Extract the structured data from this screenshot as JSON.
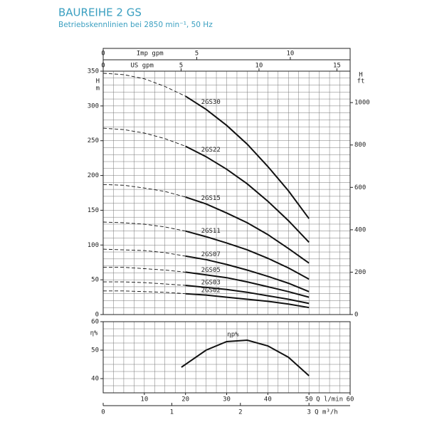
{
  "chart_data": [
    {
      "type": "line",
      "title": "BAUREIHE 2 GS",
      "subtitle": "Betriebskennlinien bei 2850 min⁻¹, 50 Hz",
      "xlim": [
        0,
        60
      ],
      "ylim": [
        0,
        350
      ],
      "yticks": [
        0,
        50,
        100,
        150,
        200,
        250,
        300,
        350
      ],
      "ylabel": "H",
      "yunit": "m",
      "y2lim": [
        0,
        1148.3
      ],
      "y2ticks": [
        0,
        200,
        400,
        600,
        800,
        1000
      ],
      "y2label": "H",
      "y2unit": "ft",
      "top_axes": [
        {
          "label": "Imp gpm",
          "xlim": [
            0,
            13.198
          ],
          "xticks": [
            0,
            5,
            10
          ]
        },
        {
          "label": "US gpm",
          "xlim": [
            0,
            15.85
          ],
          "xticks": [
            0,
            5,
            10,
            15
          ]
        }
      ],
      "grid": true,
      "solid_from_x": 20,
      "x": [
        0,
        5,
        10,
        15,
        20,
        25,
        30,
        35,
        40,
        45,
        50
      ],
      "series": [
        {
          "name": "2GS30",
          "color": "#111111",
          "values": [
            347,
            345,
            339,
            328,
            314,
            295,
            272,
            245,
            213,
            178,
            138
          ]
        },
        {
          "name": "2GS22",
          "color": "#111111",
          "values": [
            268,
            266,
            261,
            253,
            242,
            227,
            209,
            188,
            163,
            135,
            104
          ]
        },
        {
          "name": "2GS15",
          "color": "#111111",
          "values": [
            187,
            186,
            182,
            177,
            169,
            159,
            146,
            132,
            115,
            95,
            74
          ]
        },
        {
          "name": "2GS11",
          "color": "#111111",
          "values": [
            133,
            132,
            130,
            126,
            120,
            112,
            103,
            93,
            81,
            67,
            51
          ]
        },
        {
          "name": "2GS07",
          "color": "#111111",
          "values": [
            94,
            93,
            92,
            89,
            84,
            79,
            72,
            64,
            55,
            45,
            33
          ]
        },
        {
          "name": "2GS05",
          "color": "#111111",
          "values": [
            68,
            68,
            66,
            64,
            61,
            57,
            53,
            47,
            40,
            33,
            25
          ]
        },
        {
          "name": "2GS03",
          "color": "#111111",
          "values": [
            47,
            47,
            46,
            44,
            42,
            39,
            36,
            32,
            27,
            22,
            16
          ]
        },
        {
          "name": "2GS02",
          "color": "#111111",
          "values": [
            34,
            34,
            33,
            32,
            30,
            28,
            25,
            22,
            19,
            15,
            10
          ]
        }
      ]
    },
    {
      "type": "line",
      "ylabel": "η%",
      "xlim": [
        0,
        60
      ],
      "xticks": [
        10,
        20,
        30,
        40,
        50,
        60
      ],
      "xlabel": "Q l/min",
      "ylim": [
        35,
        60
      ],
      "yticks": [
        40,
        50,
        60
      ],
      "bottom_axis": {
        "label": "Q m³/h",
        "xlim": [
          0,
          3.6
        ],
        "xticks": [
          0,
          1,
          2,
          3
        ]
      },
      "grid": true,
      "x": [
        19,
        25,
        30,
        35,
        40,
        45,
        50
      ],
      "series": [
        {
          "name": "ηp%",
          "color": "#111111",
          "values": [
            44,
            50,
            53,
            53.5,
            51.5,
            47.5,
            41
          ]
        }
      ]
    }
  ]
}
